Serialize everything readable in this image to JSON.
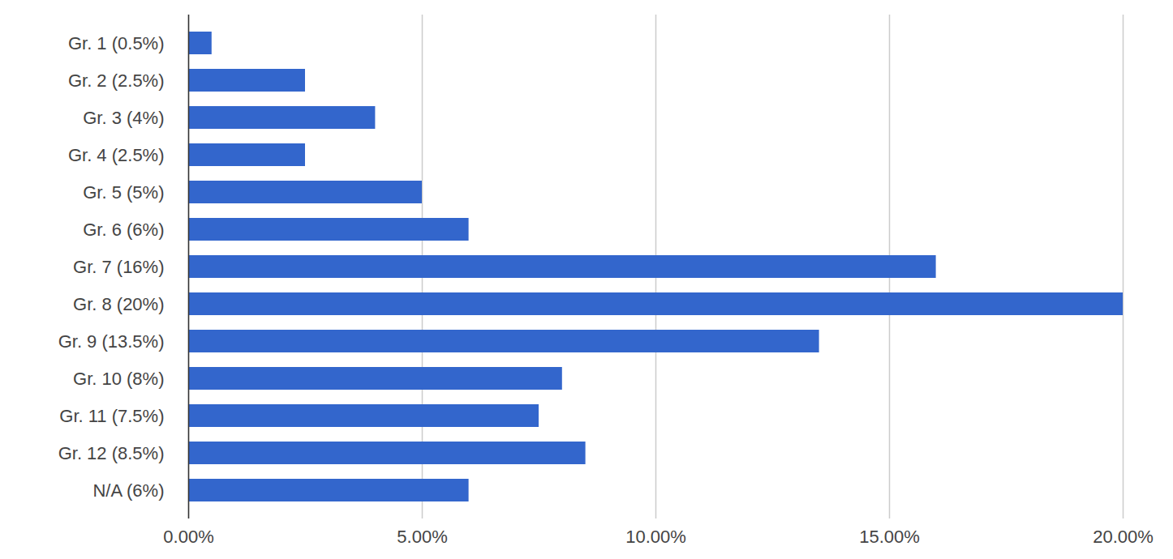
{
  "chart_data": {
    "type": "bar",
    "orientation": "horizontal",
    "categories": [
      "Gr. 1 (0.5%)",
      "Gr. 2 (2.5%)",
      "Gr. 3 (4%)",
      "Gr. 4 (2.5%)",
      "Gr. 5 (5%)",
      "Gr. 6 (6%)",
      "Gr. 7 (16%)",
      "Gr. 8 (20%)",
      "Gr. 9 (13.5%)",
      "Gr. 10 (8%)",
      "Gr. 11 (7.5%)",
      "Gr. 12 (8.5%)",
      "N/A (6%)"
    ],
    "values": [
      0.5,
      2.5,
      4,
      2.5,
      5,
      6,
      16,
      20,
      13.5,
      8,
      7.5,
      8.5,
      6
    ],
    "color": "#3366cc",
    "xlim": [
      0,
      20
    ],
    "xticks": [
      {
        "value": 0,
        "label": "0.00%"
      },
      {
        "value": 5,
        "label": "5.00%"
      },
      {
        "value": 10,
        "label": "10.00%"
      },
      {
        "value": 15,
        "label": "15.00%"
      },
      {
        "value": 20,
        "label": "20.00%"
      }
    ],
    "grid": true
  }
}
